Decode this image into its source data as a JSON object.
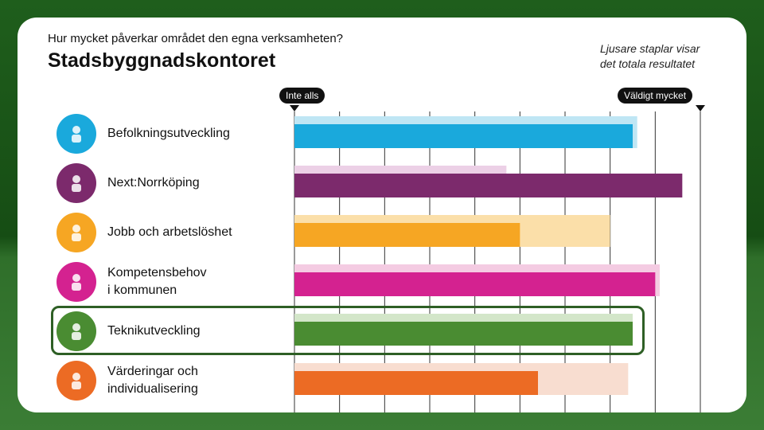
{
  "header": {
    "question": "Hur mycket påverkar området den egna verksamheten?",
    "organization": "Stadsbyggnadskontoret",
    "note_line1": "Ljusare staplar visar",
    "note_line2": "det totala resultatet"
  },
  "scale": {
    "min_label": "Inte alls",
    "max_label": "Väldigt mycket"
  },
  "chart_data": {
    "type": "bar",
    "orientation": "horizontal",
    "title": "Hur mycket påverkar området den egna verksamheten?",
    "subtitle": "Stadsbyggnadskontoret",
    "xlim": [
      0,
      9
    ],
    "grid": true,
    "categories": [
      "Befolkningsutveckling",
      "Next:Norrköping",
      "Jobb och arbetslöshet",
      "Kompetensbehov i kommunen",
      "Teknikutveckling",
      "Värderingar och individualisering"
    ],
    "series": [
      {
        "name": "Totala resultatet",
        "values": [
          7.6,
          4.7,
          7.0,
          8.1,
          7.5,
          7.4
        ]
      },
      {
        "name": "Stadsbyggnadskontoret",
        "values": [
          7.5,
          8.6,
          5.0,
          8.0,
          7.5,
          5.4
        ]
      }
    ],
    "highlighted_category": "Teknikutveckling"
  },
  "rows": [
    {
      "label_lines": [
        "Befolkningsutveckling"
      ],
      "icon": "people-icon",
      "color": "#1aa9dc",
      "light": "#bfe6f4"
    },
    {
      "label_lines": [
        "Next:Norrköping"
      ],
      "icon": "train-icon",
      "color": "#7c2a6c",
      "light": "#ecd0e6"
    },
    {
      "label_lines": [
        "Jobb och arbetslöshet"
      ],
      "icon": "briefcase-icon",
      "color": "#f6a623",
      "light": "#fbdfa9"
    },
    {
      "label_lines": [
        "Kompetensbehov",
        "i kommunen"
      ],
      "icon": "person-search-icon",
      "color": "#d42290",
      "light": "#f4cbe2"
    },
    {
      "label_lines": [
        "Teknikutveckling"
      ],
      "icon": "gear-icon",
      "color": "#4a8c32",
      "light": "#d3e6c9"
    },
    {
      "label_lines": [
        "Värderingar och",
        "individualisering"
      ],
      "icon": "person-icon",
      "color": "#ec6b24",
      "light": "#f8ddd0"
    }
  ]
}
